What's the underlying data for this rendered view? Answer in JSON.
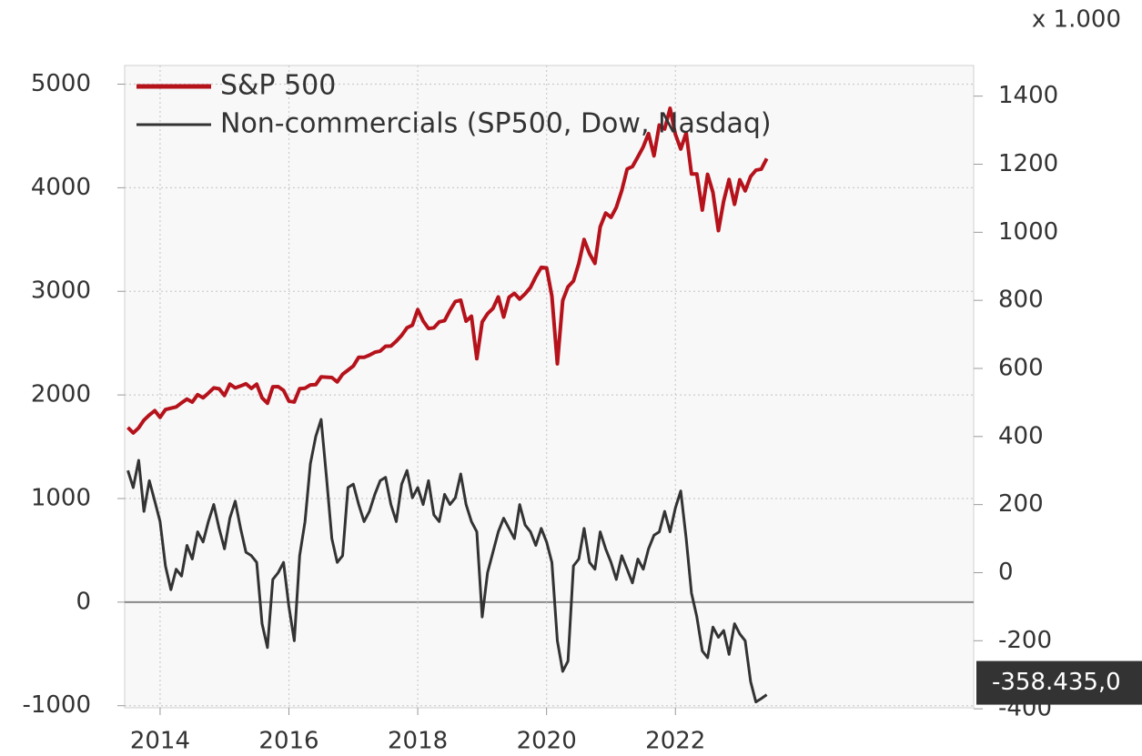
{
  "chart_data": {
    "type": "line",
    "unit_label": "x 1.000",
    "x": [
      2013.5,
      2013.583,
      2013.667,
      2013.75,
      2013.833,
      2013.917,
      2014.0,
      2014.083,
      2014.167,
      2014.25,
      2014.333,
      2014.417,
      2014.5,
      2014.583,
      2014.667,
      2014.75,
      2014.833,
      2014.917,
      2015.0,
      2015.083,
      2015.167,
      2015.25,
      2015.333,
      2015.417,
      2015.5,
      2015.583,
      2015.667,
      2015.75,
      2015.833,
      2015.917,
      2016.0,
      2016.083,
      2016.167,
      2016.25,
      2016.333,
      2016.417,
      2016.5,
      2016.583,
      2016.667,
      2016.75,
      2016.833,
      2016.917,
      2017.0,
      2017.083,
      2017.167,
      2017.25,
      2017.333,
      2017.417,
      2017.5,
      2017.583,
      2017.667,
      2017.75,
      2017.833,
      2017.917,
      2018.0,
      2018.083,
      2018.167,
      2018.25,
      2018.333,
      2018.417,
      2018.5,
      2018.583,
      2018.667,
      2018.75,
      2018.833,
      2018.917,
      2019.0,
      2019.083,
      2019.167,
      2019.25,
      2019.333,
      2019.417,
      2019.5,
      2019.583,
      2019.667,
      2019.75,
      2019.833,
      2019.917,
      2020.0,
      2020.083,
      2020.167,
      2020.25,
      2020.333,
      2020.417,
      2020.5,
      2020.583,
      2020.667,
      2020.75,
      2020.833,
      2020.917,
      2021.0,
      2021.083,
      2021.167,
      2021.25,
      2021.333,
      2021.417,
      2021.5,
      2021.583,
      2021.667,
      2021.75,
      2021.833,
      2021.917,
      2022.0,
      2022.083,
      2022.167,
      2022.25,
      2022.333,
      2022.417,
      2022.5,
      2022.583,
      2022.667,
      2022.75,
      2022.833,
      2022.917,
      2023.0,
      2023.083,
      2023.167,
      2023.25,
      2023.333,
      2023.417
    ],
    "series": [
      {
        "name": "S&P 500",
        "color": "#b5121b",
        "axis": "y",
        "values": [
          1686,
          1633,
          1682,
          1757,
          1806,
          1848,
          1783,
          1859,
          1872,
          1884,
          1924,
          1960,
          1931,
          2003,
          1972,
          2018,
          2068,
          2059,
          1995,
          2105,
          2068,
          2086,
          2107,
          2063,
          2104,
          1972,
          1920,
          2079,
          2080,
          2044,
          1940,
          1932,
          2060,
          2065,
          2097,
          2099,
          2174,
          2171,
          2168,
          2126,
          2199,
          2239,
          2279,
          2364,
          2363,
          2384,
          2412,
          2423,
          2470,
          2472,
          2519,
          2575,
          2648,
          2674,
          2824,
          2714,
          2641,
          2648,
          2705,
          2718,
          2816,
          2902,
          2914,
          2712,
          2760,
          2350,
          2704,
          2784,
          2834,
          2946,
          2752,
          2942,
          2980,
          2926,
          2977,
          3038,
          3141,
          3231,
          3226,
          2954,
          2300,
          2912,
          3044,
          3100,
          3271,
          3500,
          3363,
          3270,
          3622,
          3756,
          3714,
          3811,
          3973,
          4181,
          4204,
          4298,
          4395,
          4523,
          4308,
          4605,
          4567,
          4766,
          4516,
          4374,
          4530,
          4132,
          4132,
          3785,
          4130,
          3955,
          3586,
          3872,
          4080,
          3840,
          4077,
          3970,
          4109,
          4169,
          4180,
          4282
        ]
      },
      {
        "name": "Non-commercials (SP500, Dow, Nasdaq)",
        "color": "#333333",
        "axis": "y2",
        "values": [
          300,
          250,
          330,
          180,
          270,
          210,
          150,
          20,
          -50,
          10,
          -10,
          80,
          40,
          120,
          90,
          150,
          200,
          130,
          70,
          160,
          210,
          130,
          60,
          50,
          30,
          -150,
          -220,
          -20,
          0,
          30,
          -100,
          -200,
          50,
          150,
          320,
          400,
          450,
          280,
          100,
          30,
          50,
          250,
          260,
          200,
          150,
          180,
          230,
          270,
          280,
          200,
          150,
          260,
          300,
          220,
          250,
          200,
          270,
          170,
          150,
          230,
          200,
          220,
          290,
          200,
          150,
          120,
          -130,
          0,
          60,
          120,
          160,
          130,
          100,
          200,
          140,
          120,
          80,
          130,
          90,
          30,
          -200,
          -290,
          -260,
          20,
          40,
          130,
          30,
          10,
          120,
          70,
          30,
          -20,
          50,
          10,
          -30,
          40,
          10,
          70,
          110,
          120,
          180,
          120,
          190,
          240,
          100,
          -60,
          -130,
          -230,
          -250,
          -160,
          -190,
          -170,
          -240,
          -150,
          -180,
          -200,
          -320,
          -380,
          -370,
          -358.435
        ]
      }
    ],
    "last_value": {
      "value": -358.435,
      "label": "-358.435,0"
    },
    "xlim": [
      2013.45,
      2026.63
    ],
    "xticks": [
      2014,
      2016,
      2018,
      2020,
      2022
    ],
    "ylim": [
      -1020,
      5180
    ],
    "yticks": [
      -1000,
      0,
      1000,
      2000,
      3000,
      4000,
      5000
    ],
    "y2lim": [
      -397,
      1490
    ],
    "y2ticks": [
      -400,
      -200,
      0,
      200,
      400,
      600,
      800,
      1000,
      1200,
      1400
    ],
    "grid": true,
    "legend": "upper left"
  }
}
